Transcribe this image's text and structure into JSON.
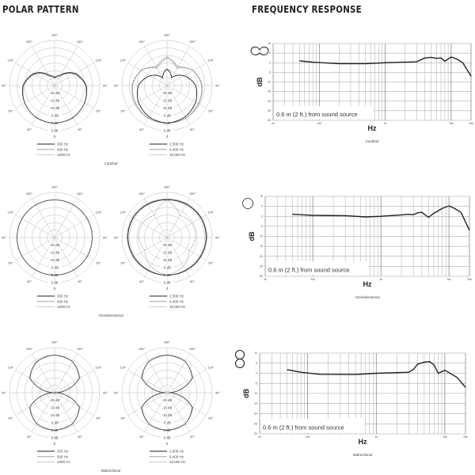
{
  "headings": {
    "polar_title": "POLAR PATTERN",
    "freq_title": "FREQUENCY RESPONSE"
  },
  "polar_common": {
    "angle_labels": [
      "0",
      "30°",
      "60°",
      "90°",
      "120°",
      "150°",
      "180°"
    ],
    "ring_labels": [
      "5 dB",
      "0 dB",
      "-5 dB",
      "-10 dB",
      "-15 dB",
      "-20 dB"
    ],
    "rlim_db": [
      -25,
      5
    ]
  },
  "freq_common": {
    "xlabel": "Hz",
    "ylabel": "dB",
    "note": "0.6 m (2 ft.) from sound source",
    "xticks": [
      "20",
      "100",
      "1k",
      "10k",
      "20k"
    ],
    "yticks": [
      "10",
      "5",
      "0",
      "-5",
      "-10",
      "-15",
      "-20",
      "-25",
      "-30"
    ],
    "xlim": [
      20,
      20000
    ],
    "ylim": [
      -30,
      10
    ],
    "xscale": "log",
    "grid": true
  },
  "patterns": [
    {
      "caption": "Cardioid",
      "icon": "cardioid-icon"
    },
    {
      "caption": "Omnidirectional",
      "icon": "omni-circle-icon"
    },
    {
      "caption": "Bidirectional",
      "icon": "figure-eight-icon"
    }
  ],
  "chart_data": [
    {
      "type": "polar",
      "pattern": "Cardioid",
      "angles": [
        0,
        30,
        60,
        90,
        120,
        150,
        180
      ],
      "series": [
        {
          "name": "250 Hz",
          "style": "solid",
          "values": [
            0,
            -0.5,
            -2,
            -4,
            -9,
            -17,
            -20
          ]
        },
        {
          "name": "500 Hz",
          "style": "dotted",
          "values": [
            0,
            -0.5,
            -2,
            -4.2,
            -9.5,
            -18,
            -20
          ]
        },
        {
          "name": "1000 Hz",
          "style": "dashed",
          "values": [
            0,
            -0.6,
            -2.2,
            -4.5,
            -10,
            -18,
            -19
          ]
        }
      ]
    },
    {
      "type": "polar",
      "pattern": "Cardioid",
      "angles": [
        0,
        30,
        60,
        90,
        120,
        150,
        180
      ],
      "series": [
        {
          "name": "2,500 Hz",
          "style": "solid",
          "values": [
            0,
            -1,
            -3,
            -6,
            -12,
            -19,
            -14
          ]
        },
        {
          "name": "6,400 Hz",
          "style": "dotted",
          "values": [
            0,
            0,
            -1,
            -2,
            -5,
            -11,
            -6
          ]
        },
        {
          "name": "10,000 Hz",
          "style": "dashed",
          "values": [
            0,
            0,
            -0.5,
            -1.5,
            -5,
            -12,
            -7
          ]
        }
      ]
    },
    {
      "type": "polar",
      "pattern": "Omnidirectional",
      "angles": [
        0,
        30,
        60,
        90,
        120,
        150,
        180
      ],
      "series": [
        {
          "name": "250 Hz",
          "style": "solid",
          "values": [
            0,
            0,
            0,
            0,
            0,
            0,
            0
          ]
        },
        {
          "name": "500 Hz",
          "style": "dotted",
          "values": [
            0,
            0,
            0,
            0,
            0,
            0,
            0
          ]
        },
        {
          "name": "1000 Hz",
          "style": "dashed",
          "values": [
            0,
            0,
            0,
            0,
            0,
            0,
            0
          ]
        }
      ]
    },
    {
      "type": "polar",
      "pattern": "Omnidirectional",
      "angles": [
        0,
        30,
        60,
        90,
        120,
        150,
        180
      ],
      "series": [
        {
          "name": "2,500 Hz",
          "style": "solid",
          "values": [
            0,
            0,
            0.5,
            1,
            1,
            0.5,
            0
          ]
        },
        {
          "name": "6,400 Hz",
          "style": "dotted",
          "values": [
            0,
            0.5,
            1,
            1.5,
            1.5,
            1,
            0.5
          ]
        },
        {
          "name": "10,000 Hz",
          "style": "dashed",
          "values": [
            0,
            -3,
            -8,
            -6,
            -6,
            -8,
            0
          ]
        }
      ]
    },
    {
      "type": "polar",
      "pattern": "Bidirectional",
      "angles": [
        0,
        30,
        60,
        90,
        120,
        150,
        180
      ],
      "series": [
        {
          "name": "250 Hz",
          "style": "solid",
          "values": [
            0,
            -1.2,
            -6,
            -25,
            -6,
            -1.2,
            0
          ]
        },
        {
          "name": "500 Hz",
          "style": "dotted",
          "values": [
            0,
            -1.2,
            -6,
            -25,
            -6,
            -1.2,
            0
          ]
        },
        {
          "name": "1000 Hz",
          "style": "dashed",
          "values": [
            0,
            -1.3,
            -6.2,
            -25,
            -6.2,
            -1.3,
            0
          ]
        }
      ]
    },
    {
      "type": "polar",
      "pattern": "Bidirectional",
      "angles": [
        0,
        30,
        60,
        90,
        120,
        150,
        180
      ],
      "series": [
        {
          "name": "2,500 Hz",
          "style": "solid",
          "values": [
            0,
            -1,
            -5.5,
            -24,
            -5.5,
            -1,
            0
          ]
        },
        {
          "name": "6,400 Hz",
          "style": "dotted",
          "values": [
            0,
            -1,
            -5.5,
            -24,
            -5.5,
            -1,
            0
          ]
        },
        {
          "name": "10,000 Hz",
          "style": "dashed",
          "values": [
            0,
            -1,
            -5.8,
            -24,
            -5.8,
            -1,
            0
          ]
        }
      ]
    },
    {
      "type": "line",
      "pattern": "Cardioid",
      "x": [
        50,
        80,
        200,
        500,
        1000,
        2000,
        3000,
        4000,
        5000,
        6000,
        7000,
        8000,
        10000,
        12000,
        15000,
        20000
      ],
      "y": [
        1,
        0.3,
        -0.5,
        -0.5,
        0,
        0.3,
        0.5,
        2.5,
        2.8,
        2.3,
        2.5,
        0.8,
        3,
        2,
        0,
        -7
      ]
    },
    {
      "type": "line",
      "pattern": "Omnidirectional",
      "x": [
        50,
        100,
        300,
        600,
        1000,
        2000,
        2500,
        3000,
        3500,
        4000,
        5000,
        6000,
        8000,
        10000,
        12000,
        15000,
        20000
      ],
      "y": [
        1,
        0.5,
        0.3,
        -0.3,
        0,
        0.7,
        1,
        0.8,
        1.8,
        2,
        -0.5,
        1.5,
        4,
        5.2,
        4,
        2,
        -7
      ]
    },
    {
      "type": "line",
      "pattern": "Bidirectional",
      "x": [
        50,
        80,
        150,
        500,
        1000,
        2000,
        3000,
        3500,
        4000,
        5000,
        6000,
        7000,
        8000,
        10000,
        15000,
        20000
      ],
      "y": [
        1.8,
        0.5,
        -0.5,
        -0.6,
        0,
        0.3,
        0.5,
        2,
        4.5,
        5.5,
        5.8,
        4,
        0,
        1.5,
        -2,
        -7
      ]
    }
  ]
}
